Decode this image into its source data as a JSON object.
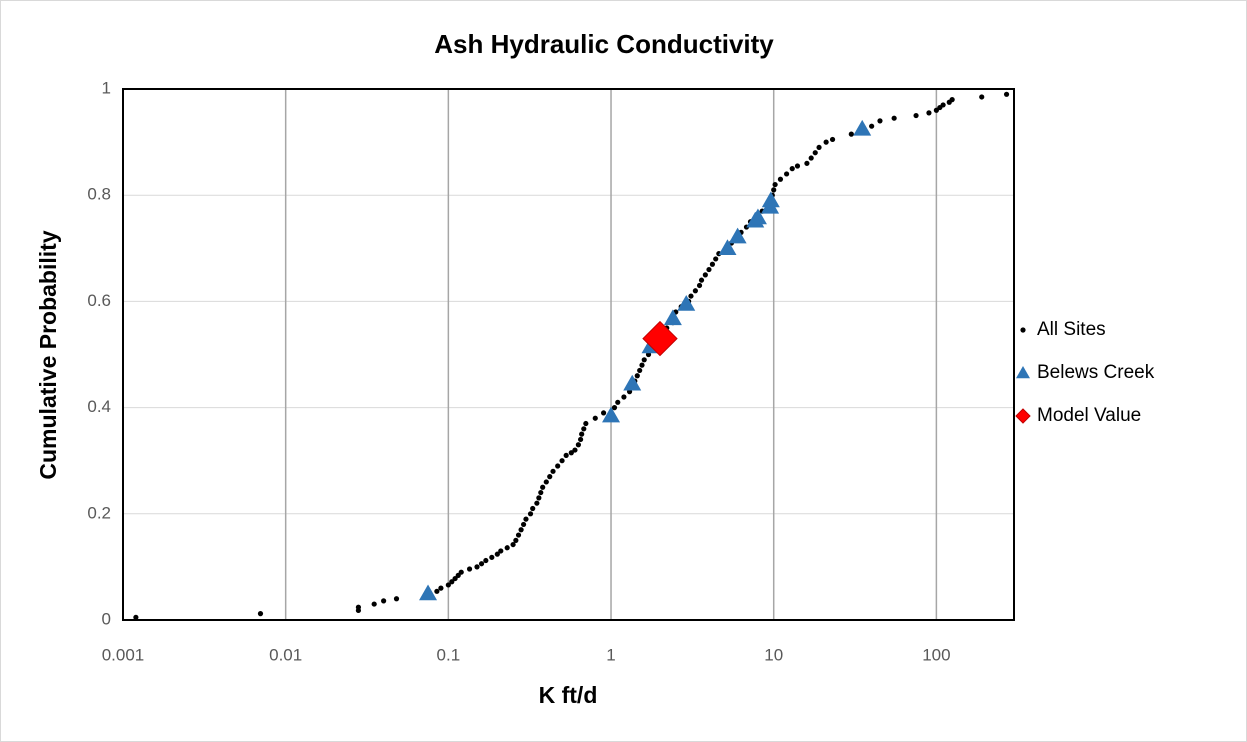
{
  "chart_data": {
    "type": "scatter",
    "title": "Ash Hydraulic Conductivity",
    "x_label": "K ft/d",
    "y_label": "Cumulative  Probability",
    "xscale": "log",
    "xlim": [
      0.001,
      300
    ],
    "ylim": [
      0,
      1
    ],
    "xticks": [
      0.001,
      0.01,
      0.1,
      1,
      10,
      100
    ],
    "yticks": [
      0,
      0.2,
      0.4,
      0.6,
      0.8,
      1
    ],
    "grid": true,
    "legend": "right",
    "series": [
      {
        "name": "All Sites",
        "color": "#000000",
        "marker": "circle",
        "x": [
          0.0012,
          0.007,
          0.028,
          0.028,
          0.035,
          0.04,
          0.048,
          0.075,
          0.085,
          0.09,
          0.1,
          0.105,
          0.11,
          0.115,
          0.12,
          0.135,
          0.15,
          0.16,
          0.17,
          0.185,
          0.2,
          0.21,
          0.23,
          0.25,
          0.26,
          0.27,
          0.28,
          0.29,
          0.3,
          0.32,
          0.33,
          0.35,
          0.36,
          0.37,
          0.38,
          0.4,
          0.42,
          0.44,
          0.47,
          0.5,
          0.53,
          0.57,
          0.6,
          0.63,
          0.65,
          0.66,
          0.68,
          0.7,
          0.8,
          0.9,
          1.05,
          1.1,
          1.2,
          1.3,
          1.4,
          1.45,
          1.5,
          1.55,
          1.6,
          1.7,
          2.2,
          2.4,
          2.5,
          2.7,
          3.0,
          3.1,
          3.3,
          3.5,
          3.6,
          3.8,
          4.0,
          4.2,
          4.4,
          4.6,
          5.5,
          6.3,
          6.8,
          7.2,
          8.5,
          9.8,
          10,
          10.2,
          11,
          12,
          13,
          14,
          16,
          17,
          18,
          19,
          21,
          23,
          30,
          40,
          45,
          55,
          75,
          90,
          100,
          105,
          110,
          120,
          125,
          190,
          270
        ],
        "values": [
          0.005,
          0.012,
          0.018,
          0.024,
          0.03,
          0.036,
          0.04,
          0.045,
          0.054,
          0.06,
          0.066,
          0.072,
          0.078,
          0.084,
          0.09,
          0.096,
          0.1,
          0.106,
          0.112,
          0.118,
          0.124,
          0.13,
          0.136,
          0.142,
          0.15,
          0.16,
          0.17,
          0.18,
          0.19,
          0.2,
          0.21,
          0.22,
          0.23,
          0.24,
          0.25,
          0.26,
          0.27,
          0.28,
          0.29,
          0.3,
          0.31,
          0.315,
          0.32,
          0.33,
          0.34,
          0.35,
          0.36,
          0.37,
          0.38,
          0.39,
          0.4,
          0.41,
          0.42,
          0.43,
          0.45,
          0.46,
          0.47,
          0.48,
          0.49,
          0.5,
          0.55,
          0.56,
          0.58,
          0.59,
          0.6,
          0.61,
          0.62,
          0.63,
          0.64,
          0.65,
          0.66,
          0.67,
          0.68,
          0.69,
          0.71,
          0.73,
          0.74,
          0.75,
          0.77,
          0.8,
          0.81,
          0.82,
          0.83,
          0.84,
          0.85,
          0.855,
          0.86,
          0.87,
          0.88,
          0.89,
          0.9,
          0.905,
          0.915,
          0.93,
          0.94,
          0.945,
          0.95,
          0.955,
          0.96,
          0.965,
          0.97,
          0.975,
          0.98,
          0.985,
          0.99
        ]
      },
      {
        "name": "Belews Creek",
        "color": "#2e75b6",
        "marker": "triangle",
        "x": [
          0.075,
          1.0,
          1.35,
          1.75,
          2.4,
          2.9,
          5.2,
          6.0,
          7.7,
          8.0,
          9.5,
          9.6,
          35
        ],
        "values": [
          0.05,
          0.385,
          0.445,
          0.515,
          0.568,
          0.595,
          0.7,
          0.722,
          0.752,
          0.758,
          0.778,
          0.79,
          0.925
        ]
      },
      {
        "name": "Model Value",
        "color": "#ff0000",
        "marker": "diamond",
        "x": [
          2.0
        ],
        "values": [
          0.53
        ]
      }
    ]
  }
}
